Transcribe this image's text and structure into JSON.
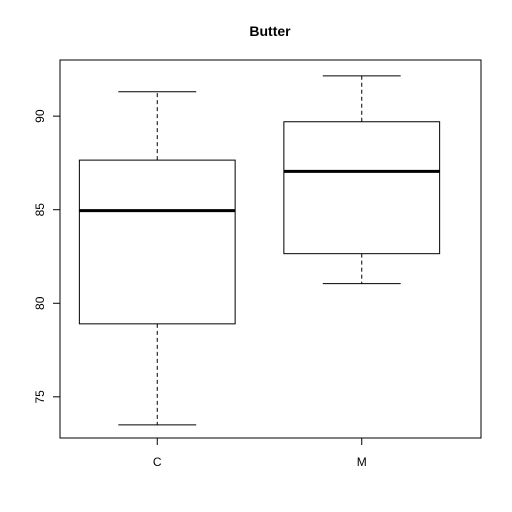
{
  "chart_data": {
    "type": "boxplot",
    "title": "Butter",
    "xlabel": "",
    "ylabel": "",
    "categories": [
      "C",
      "M"
    ],
    "boxes": [
      {
        "category": "C",
        "whisker_low": 73.5,
        "q1": 78.9,
        "median": 84.95,
        "q3": 87.65,
        "whisker_high": 91.3
      },
      {
        "category": "M",
        "whisker_low": 81.05,
        "q1": 82.65,
        "median": 87.05,
        "q3": 89.7,
        "whisker_high": 92.15
      }
    ],
    "ylim": [
      72.8,
      93.0
    ],
    "yticks": [
      75,
      80,
      85,
      90
    ],
    "grid": false,
    "legend": "none"
  }
}
